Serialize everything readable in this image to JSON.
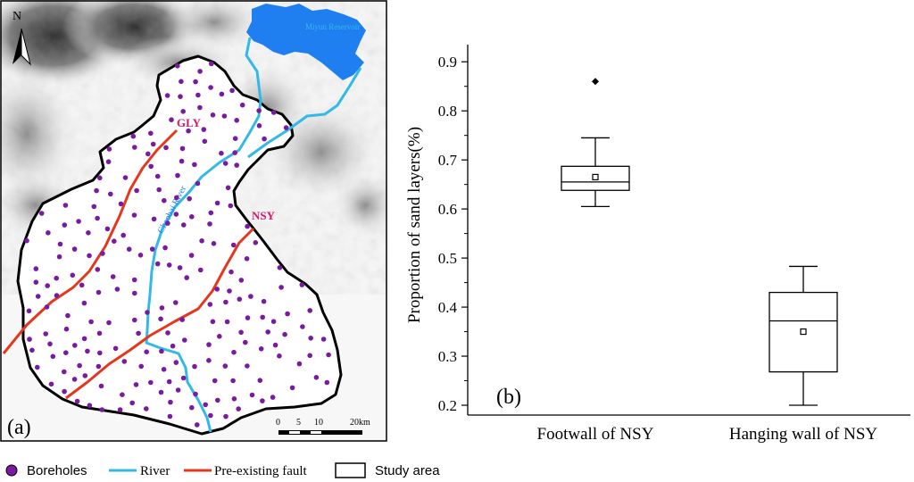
{
  "map": {
    "panel_label": "(a)",
    "north_label": "N",
    "reservoir_label": "Miyun Reservoir",
    "river_label": "Chaobai River",
    "fault_labels": [
      "GLY",
      "NSY"
    ],
    "scale_ticks": [
      "0",
      "5",
      "10",
      "20km"
    ],
    "colors": {
      "river": "#33b9e6",
      "fault": "#e5371c",
      "borehole": "#7a1aa0",
      "reservoir": "#1f7ff0",
      "boundary": "#000000",
      "fault_label": "#d6186c"
    }
  },
  "legend": {
    "boreholes": "Boreholes",
    "river": "River",
    "fault": "Pre-existing fault",
    "study_area": "Study area"
  },
  "chart_data": {
    "type": "box",
    "panel_label": "(b)",
    "ylabel": "Proportion of sand layers(%)",
    "ylim": [
      0.2,
      0.9
    ],
    "yticks": [
      "0.2",
      "0.3",
      "0.4",
      "0.5",
      "0.6",
      "0.7",
      "0.8",
      "0.9"
    ],
    "categories": [
      "Footwall of NSY",
      "Hanging wall of NSY"
    ],
    "boxes": [
      {
        "name": "Footwall of NSY",
        "whisker_low": 0.605,
        "q1": 0.638,
        "median": 0.655,
        "q3": 0.687,
        "whisker_high": 0.745,
        "mean": 0.665,
        "outliers": [
          0.86
        ]
      },
      {
        "name": "Hanging wall of NSY",
        "whisker_low": 0.2,
        "q1": 0.268,
        "median": 0.372,
        "q3": 0.43,
        "whisker_high": 0.483,
        "mean": 0.35,
        "outliers": []
      }
    ]
  }
}
